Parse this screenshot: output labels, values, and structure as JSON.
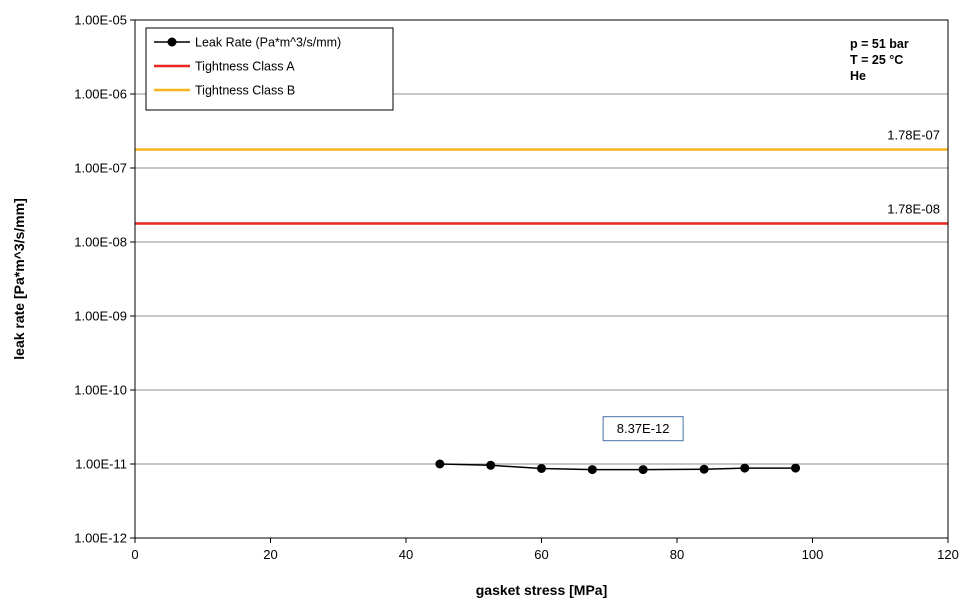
{
  "chart_data": {
    "type": "line",
    "xlabel": "gasket stress [MPa]",
    "ylabel": "leak rate [Pa*m^3/s/mm]",
    "xlim": [
      0,
      120
    ],
    "ylim": [
      1e-12,
      1e-05
    ],
    "yscale": "log",
    "grid": "horizontal",
    "legend_position": "top-left",
    "x_ticks": [
      "0",
      "20",
      "40",
      "60",
      "80",
      "100",
      "120"
    ],
    "y_ticks": [
      "1.00E-12",
      "1.00E-11",
      "1.00E-10",
      "1.00E-09",
      "1.00E-08",
      "1.00E-07",
      "1.00E-06",
      "1.00E-05"
    ],
    "series": [
      {
        "name": "Leak Rate (Pa*m^3/s/mm)",
        "color": "#000000",
        "marker": "circle",
        "x": [
          45,
          52.5,
          60,
          67.5,
          75,
          84,
          90,
          97.5
        ],
        "y": [
          1e-11,
          9.6e-12,
          8.7e-12,
          8.4e-12,
          8.4e-12,
          8.5e-12,
          8.8e-12,
          8.8e-12
        ]
      },
      {
        "name": "Tightness Class A",
        "color": "#e8251e",
        "y_constant": 1.78e-08
      },
      {
        "name": "Tightness Class B",
        "color": "#f5b41b",
        "y_constant": 1.78e-07
      }
    ],
    "annotations": {
      "class_a_value": "1.78E-08",
      "class_b_value": "1.78E-07",
      "min_value_box": "8.37E-12",
      "min_value_box_x": 75,
      "min_value_box_y": 3e-11
    },
    "conditions": [
      "p = 51 bar",
      "T = 25 °C",
      "He"
    ]
  }
}
